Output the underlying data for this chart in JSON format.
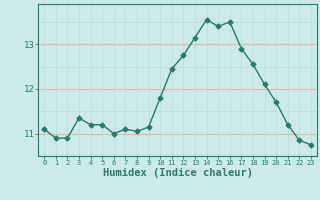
{
  "x": [
    0,
    1,
    2,
    3,
    4,
    5,
    6,
    7,
    8,
    9,
    10,
    11,
    12,
    13,
    14,
    15,
    16,
    17,
    18,
    19,
    20,
    21,
    22,
    23
  ],
  "y": [
    11.1,
    10.9,
    10.9,
    11.35,
    11.2,
    11.2,
    11.0,
    11.1,
    11.05,
    11.15,
    11.8,
    12.45,
    12.75,
    13.15,
    13.55,
    13.4,
    13.5,
    12.9,
    12.55,
    12.1,
    11.7,
    11.2,
    10.85,
    10.75
  ],
  "line_color": "#2a7a6e",
  "marker": "D",
  "marker_size": 2.5,
  "bg_color": "#cceae8",
  "hgrid_color": "#e8b0b0",
  "vgrid_color": "#b8dbd8",
  "xlabel": "Humidex (Indice chaleur)",
  "xlabel_fontsize": 7.5,
  "yticks": [
    11,
    12,
    13
  ],
  "ylim": [
    10.5,
    13.9
  ],
  "xlim": [
    -0.5,
    23.5
  ]
}
